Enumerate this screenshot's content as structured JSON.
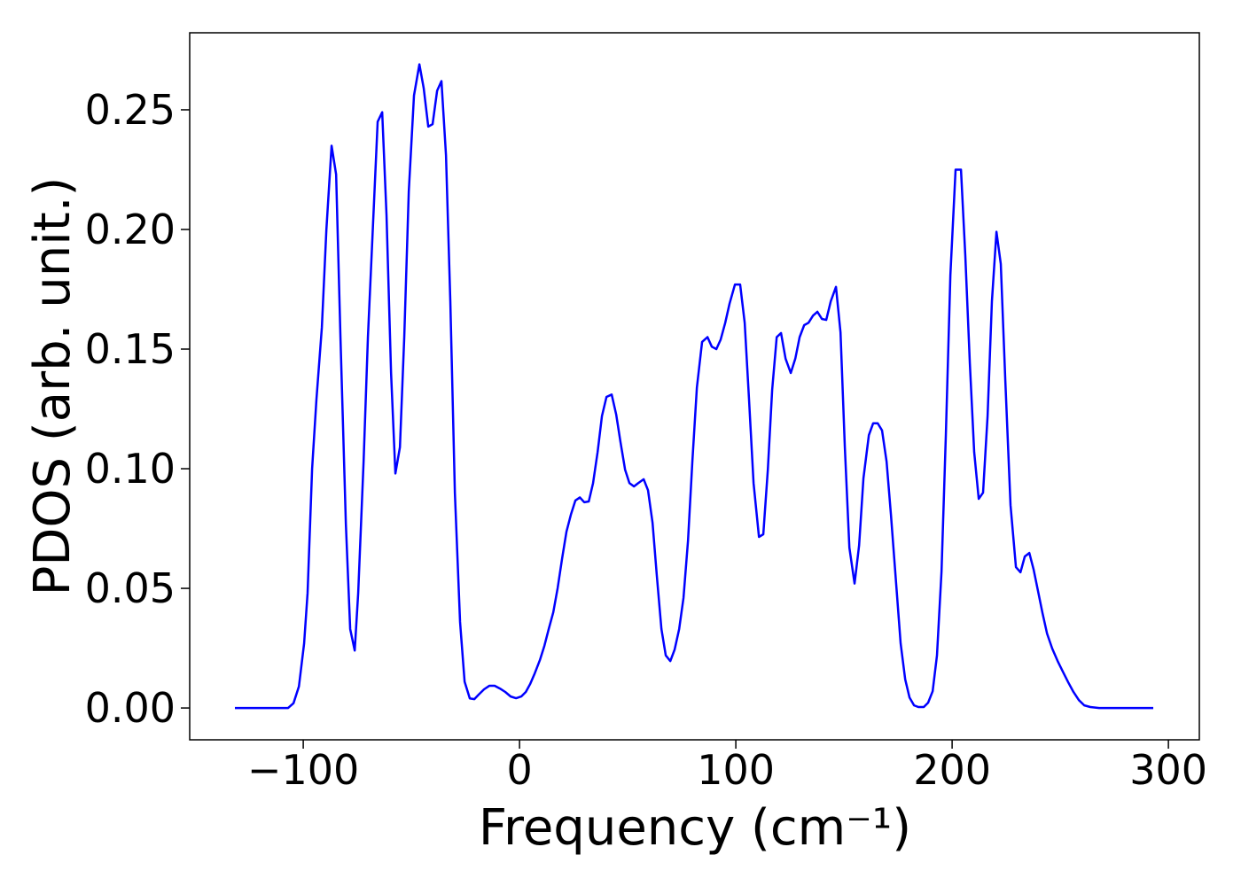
{
  "chart_data": {
    "type": "line",
    "xlabel": "Frequency (cm⁻¹)",
    "ylabel": "PDOS (arb. unit.)",
    "x": [
      -131.6,
      -107,
      -104.5,
      -102,
      -99.6,
      -98,
      -95.9,
      -93.9,
      -91.4,
      -89.3,
      -86.9,
      -84.8,
      -82.8,
      -80.3,
      -78.3,
      -76.2,
      -74.6,
      -72.1,
      -70.1,
      -67.6,
      -65.6,
      -63.5,
      -61.5,
      -59.4,
      -57.4,
      -55.3,
      -53.3,
      -51.2,
      -48.8,
      -46.3,
      -44.3,
      -42.2,
      -40.2,
      -38.1,
      -36.1,
      -34.0,
      -32.0,
      -29.9,
      -27.5,
      -25.4,
      -23.0,
      -20.9,
      -18.9,
      -16.4,
      -13.9,
      -11.5,
      -9.0,
      -6.6,
      -4.1,
      -1.6,
      0.8,
      2.9,
      4.9,
      7.0,
      9.4,
      11.5,
      13.5,
      15.6,
      17.6,
      19.7,
      21.7,
      23.8,
      25.8,
      27.9,
      29.9,
      32.0,
      34.0,
      36.1,
      38.1,
      40.2,
      42.6,
      44.7,
      46.7,
      48.8,
      50.8,
      52.9,
      54.9,
      57.4,
      59.4,
      61.5,
      63.5,
      65.6,
      67.6,
      69.7,
      71.7,
      73.8,
      75.8,
      77.9,
      79.9,
      82.0,
      84.4,
      86.9,
      88.9,
      91.0,
      93.0,
      95.1,
      97.1,
      99.6,
      102.0,
      104.1,
      106.1,
      108.2,
      110.7,
      112.7,
      114.8,
      116.8,
      118.9,
      120.9,
      123.0,
      125.4,
      127.5,
      129.5,
      131.6,
      133.6,
      135.7,
      137.7,
      139.8,
      141.8,
      143.9,
      146.3,
      148.4,
      150.4,
      152.5,
      154.9,
      157.0,
      159.0,
      161.5,
      163.5,
      165.6,
      167.6,
      169.7,
      171.7,
      174.2,
      176.2,
      178.3,
      180.3,
      182.4,
      184.4,
      186.9,
      188.9,
      191.0,
      193.0,
      195.1,
      197.1,
      199.2,
      201.6,
      204.1,
      206.1,
      208.2,
      210.2,
      212.3,
      214.3,
      216.4,
      218.4,
      220.5,
      222.5,
      224.6,
      227.0,
      229.5,
      231.6,
      233.6,
      235.7,
      237.7,
      239.8,
      241.8,
      243.9,
      246.3,
      248.8,
      251.2,
      253.7,
      256.1,
      258.6,
      261.1,
      263.9,
      268.0,
      293.0
    ],
    "series": [
      {
        "name": "PDOS",
        "color": "#0000ff",
        "values": [
          0,
          0,
          0.002,
          0.009,
          0.027,
          0.048,
          0.1,
          0.129,
          0.159,
          0.2,
          0.235,
          0.223,
          0.155,
          0.077,
          0.033,
          0.024,
          0.048,
          0.103,
          0.155,
          0.205,
          0.245,
          0.249,
          0.206,
          0.14,
          0.098,
          0.109,
          0.155,
          0.216,
          0.256,
          0.269,
          0.259,
          0.243,
          0.244,
          0.258,
          0.262,
          0.231,
          0.17,
          0.09,
          0.036,
          0.011,
          0.004,
          0.0037,
          0.0056,
          0.0078,
          0.0093,
          0.0093,
          0.0081,
          0.0067,
          0.0048,
          0.0041,
          0.0048,
          0.0067,
          0.01,
          0.0144,
          0.02,
          0.026,
          0.033,
          0.04,
          0.05,
          0.0626,
          0.0737,
          0.081,
          0.0867,
          0.088,
          0.086,
          0.0863,
          0.094,
          0.107,
          0.122,
          0.13,
          0.131,
          0.1226,
          0.111,
          0.0996,
          0.094,
          0.0926,
          0.094,
          0.0956,
          0.091,
          0.0774,
          0.055,
          0.033,
          0.022,
          0.0196,
          0.0244,
          0.033,
          0.046,
          0.07,
          0.103,
          0.134,
          0.153,
          0.155,
          0.151,
          0.15,
          0.154,
          0.161,
          0.169,
          0.177,
          0.177,
          0.161,
          0.129,
          0.094,
          0.0715,
          0.0726,
          0.0996,
          0.133,
          0.155,
          0.1567,
          0.146,
          0.14,
          0.146,
          0.155,
          0.16,
          0.161,
          0.164,
          0.1656,
          0.1626,
          0.1622,
          0.17,
          0.176,
          0.157,
          0.109,
          0.067,
          0.052,
          0.068,
          0.096,
          0.114,
          0.119,
          0.119,
          0.116,
          0.103,
          0.081,
          0.051,
          0.027,
          0.012,
          0.0044,
          0.0011,
          0.0004,
          0.0004,
          0.0022,
          0.007,
          0.022,
          0.057,
          0.114,
          0.181,
          0.225,
          0.225,
          0.189,
          0.144,
          0.107,
          0.0874,
          0.09,
          0.122,
          0.17,
          0.199,
          0.1856,
          0.1367,
          0.0848,
          0.0589,
          0.0567,
          0.0633,
          0.0648,
          0.0578,
          0.0485,
          0.0396,
          0.0311,
          0.0248,
          0.0196,
          0.0152,
          0.0107,
          0.0067,
          0.0033,
          0.0011,
          0.0004,
          0,
          0
        ]
      }
    ],
    "xlim": [
      -152.5,
      314.3
    ],
    "ylim": [
      -0.0133,
      0.2822
    ],
    "xticks": [
      {
        "value": -100,
        "label": "−100"
      },
      0,
      100,
      200,
      300
    ],
    "yticks": [
      {
        "value": 0,
        "label": "0.00"
      },
      0.05,
      {
        "value": 0.1,
        "label": "0.10"
      },
      0.15,
      {
        "value": 0.2,
        "label": "0.20"
      },
      0.25
    ],
    "grid": false
  }
}
